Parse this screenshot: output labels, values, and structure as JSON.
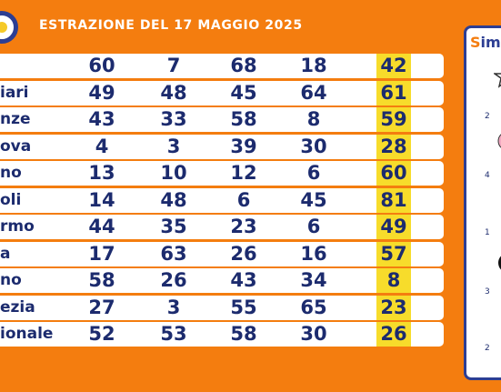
{
  "header": {
    "title": "ESTRAZIONE DEL 17 MAGGIO 2025"
  },
  "table": {
    "rows": [
      {
        "city": "",
        "numbers": [
          "60",
          "7",
          "68",
          "18",
          "42"
        ]
      },
      {
        "city": "iari",
        "numbers": [
          "49",
          "48",
          "45",
          "64",
          "61"
        ]
      },
      {
        "city": "nze",
        "numbers": [
          "43",
          "33",
          "58",
          "8",
          "59"
        ]
      },
      {
        "city": "ova",
        "numbers": [
          "4",
          "3",
          "39",
          "30",
          "28"
        ]
      },
      {
        "city": "no",
        "numbers": [
          "13",
          "10",
          "12",
          "6",
          "60"
        ]
      },
      {
        "city": "oli",
        "numbers": [
          "14",
          "48",
          "6",
          "45",
          "81"
        ]
      },
      {
        "city": "rmo",
        "numbers": [
          "44",
          "35",
          "23",
          "6",
          "49"
        ]
      },
      {
        "city": "a",
        "numbers": [
          "17",
          "63",
          "26",
          "16",
          "57"
        ]
      },
      {
        "city": "no",
        "numbers": [
          "58",
          "26",
          "43",
          "34",
          "8"
        ]
      },
      {
        "city": "ezia",
        "numbers": [
          "27",
          "3",
          "55",
          "65",
          "23"
        ]
      },
      {
        "city": "ionale",
        "numbers": [
          "52",
          "53",
          "58",
          "30",
          "26"
        ]
      }
    ]
  },
  "side_panel": {
    "logo_text_a": "S",
    "logo_text_b": "im",
    "symbol_numbers": [
      "2",
      "4",
      "1",
      "3",
      "2"
    ]
  },
  "colors": {
    "background": "#f47d0f",
    "highlight": "#f7dc2b",
    "text": "#1c2b6e"
  }
}
